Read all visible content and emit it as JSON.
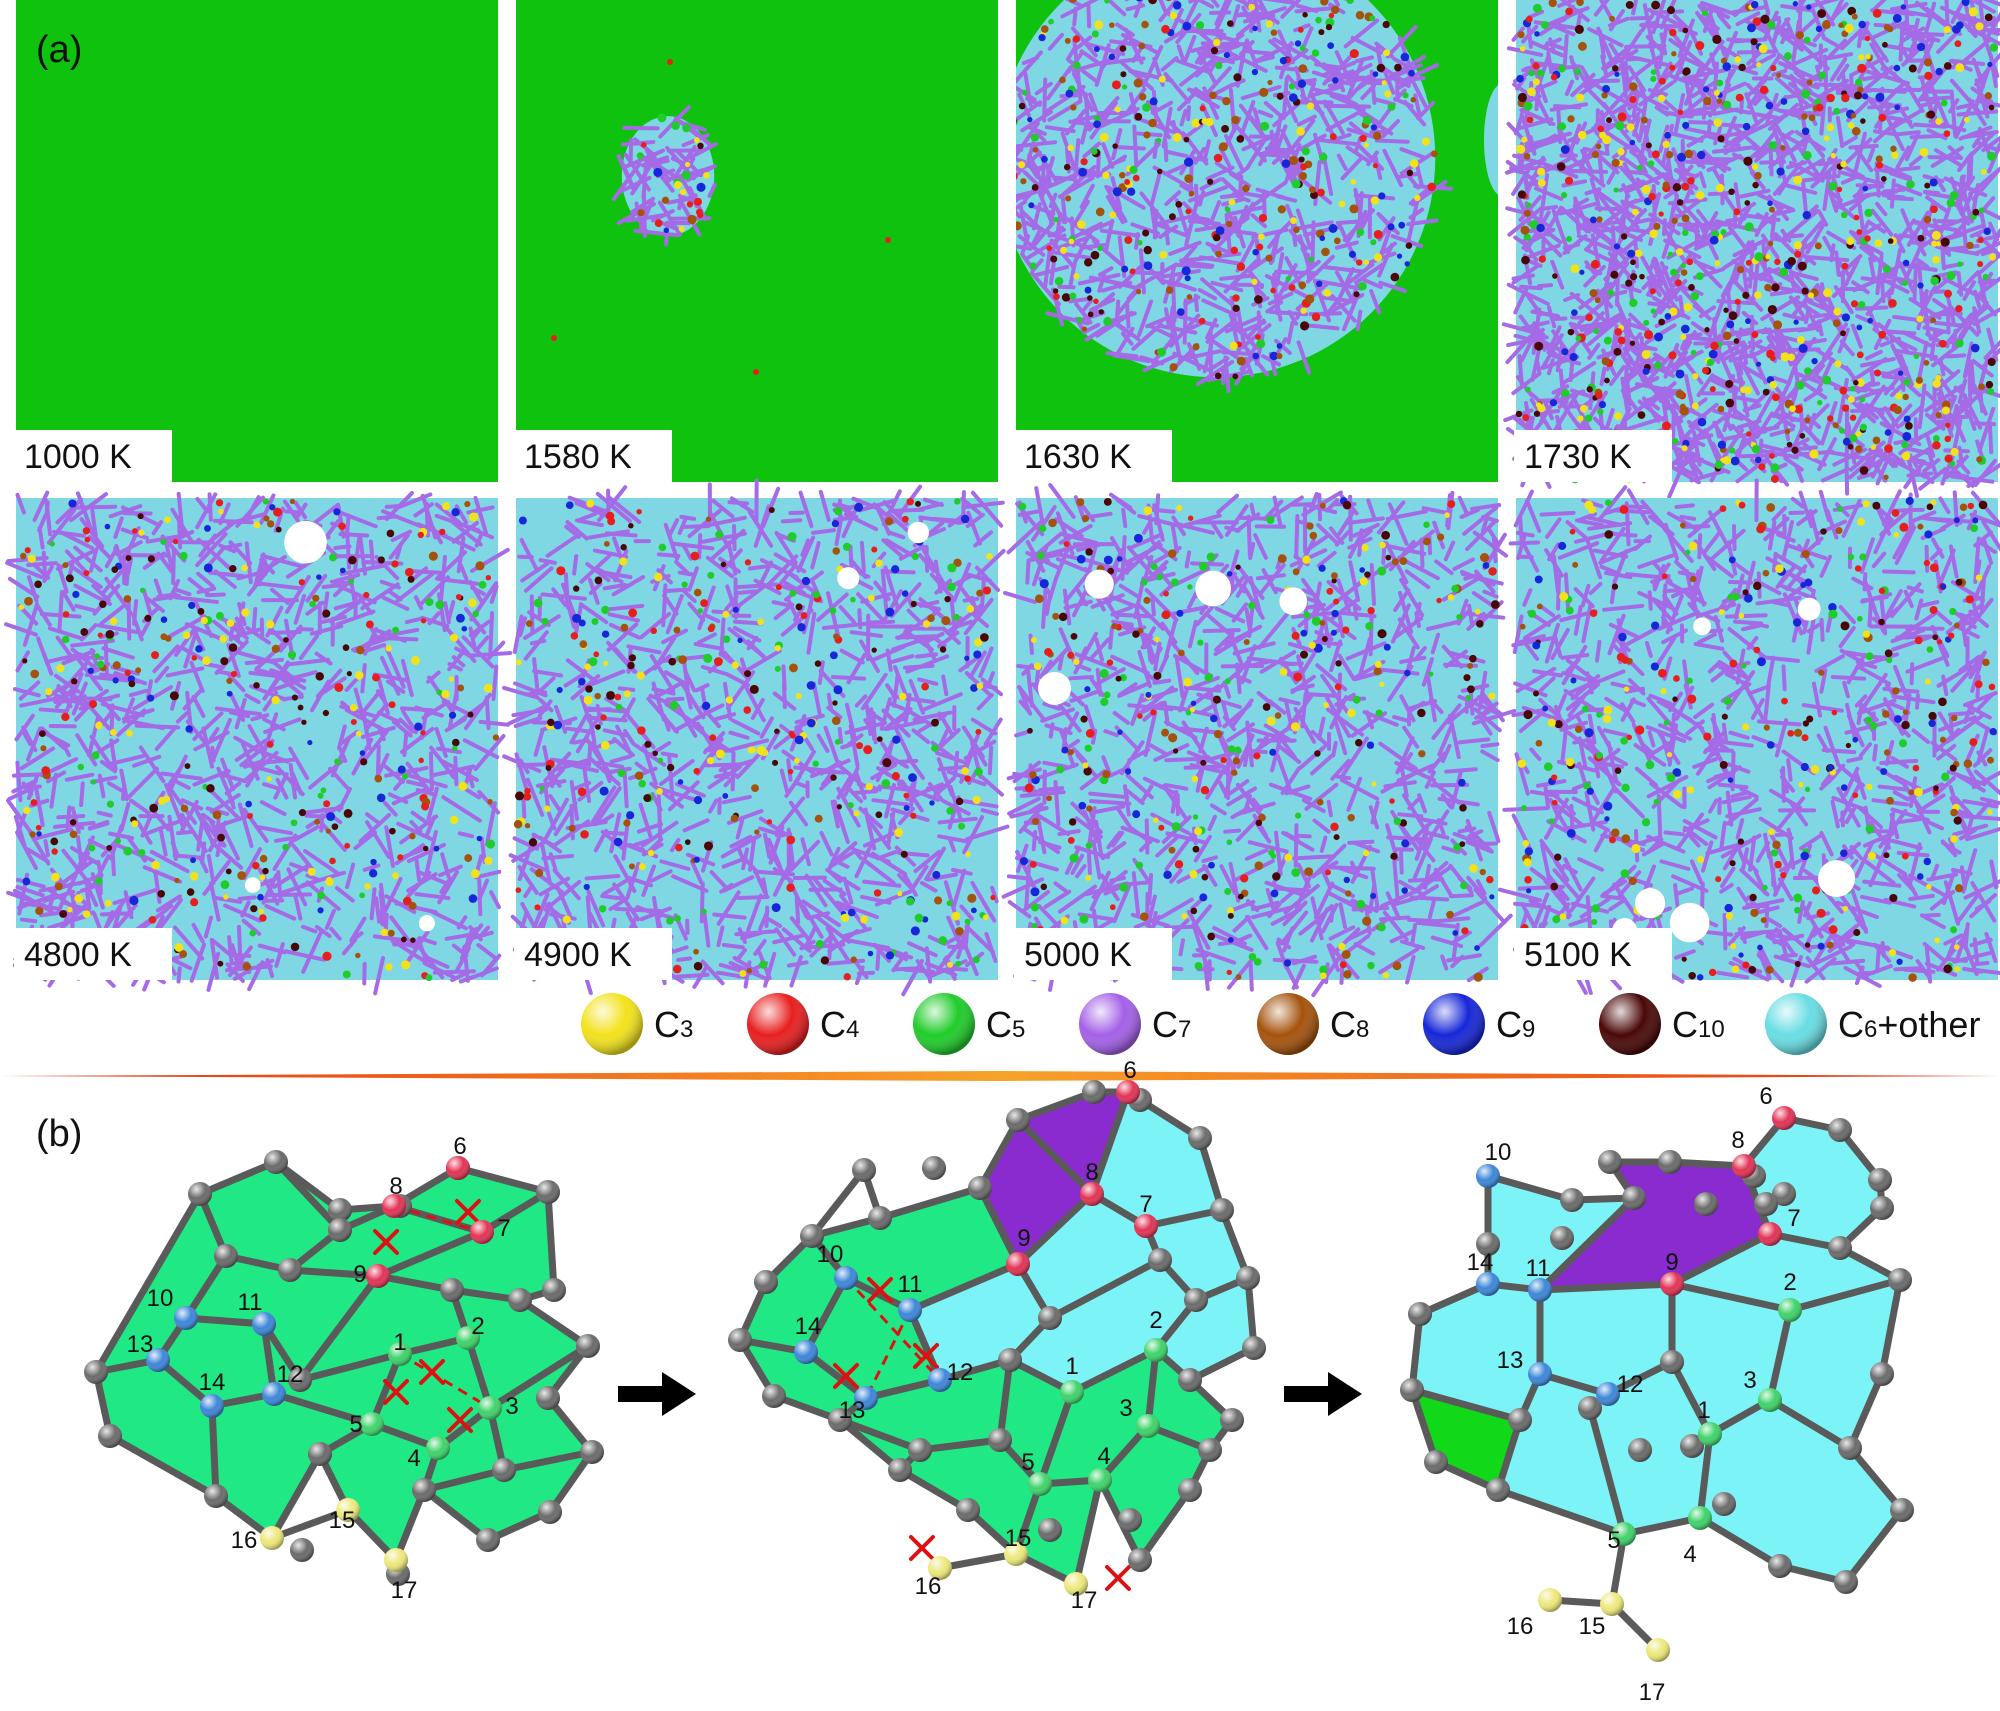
{
  "panel_a": {
    "label": "(a)",
    "snapshots": [
      {
        "temp": "1000 K",
        "state": "crystal"
      },
      {
        "temp": "1580 K",
        "state": "nucleus",
        "melt_fraction": 0.04
      },
      {
        "temp": "1630 K",
        "state": "growing",
        "melt_fraction": 0.65
      },
      {
        "temp": "1730 K",
        "state": "liquid"
      },
      {
        "temp": "4800 K",
        "state": "liquid-hot",
        "void_fraction": 0.005
      },
      {
        "temp": "4900 K",
        "state": "liquid-hot",
        "void_fraction": 0.004
      },
      {
        "temp": "5000 K",
        "state": "liquid-hot",
        "void_fraction": 0.015
      },
      {
        "temp": "5100 K",
        "state": "liquid-hot",
        "void_fraction": 0.04
      }
    ]
  },
  "legend": [
    {
      "main": "C",
      "sub": "3",
      "suffix": "",
      "color": "#f2e21a"
    },
    {
      "main": "C",
      "sub": "4",
      "suffix": "",
      "color": "#e81e1e"
    },
    {
      "main": "C",
      "sub": "5",
      "suffix": "",
      "color": "#1fcc2a"
    },
    {
      "main": "C",
      "sub": "7",
      "suffix": "",
      "color": "#a460e8"
    },
    {
      "main": "C",
      "sub": "8",
      "suffix": "",
      "color": "#a5520c"
    },
    {
      "main": "C",
      "sub": "9",
      "suffix": "",
      "color": "#1626d8"
    },
    {
      "main": "C",
      "sub": "10",
      "suffix": "",
      "color": "#4a0707"
    },
    {
      "main": "C",
      "sub": "6",
      "suffix": "+other",
      "color": "#67dde3"
    }
  ],
  "panel_b": {
    "label": "(b)",
    "numbers": {
      "s1": [
        "1",
        "2",
        "3",
        "4",
        "5",
        "6",
        "7",
        "8",
        "9",
        "10",
        "11",
        "12",
        "13",
        "14",
        "15",
        "16",
        "17"
      ],
      "s2": [
        "1",
        "2",
        "3",
        "4",
        "5",
        "6",
        "7",
        "8",
        "9",
        "10",
        "11",
        "12",
        "13",
        "14",
        "15",
        "16",
        "17"
      ],
      "s3": [
        "1",
        "2",
        "3",
        "4",
        "5",
        "6",
        "7",
        "8",
        "9",
        "10",
        "11",
        "12",
        "13",
        "14",
        "15",
        "16",
        "17"
      ]
    }
  },
  "colors": {
    "crystal": "#0ec20e",
    "liquid": "#7fd7e4",
    "heptagon_ring": "#a56ae6",
    "pentagon_face": "#1fe885",
    "hexagon_face": "#7cf3f7",
    "heptagon_face": "#8a2bcf",
    "pentagon_dark": "#12d81a",
    "atom_gray": "#6b6b6b",
    "atom_red": "#e23355",
    "atom_blue": "#3d86d8",
    "atom_green": "#3ed36a",
    "atom_yellow": "#ece879"
  }
}
